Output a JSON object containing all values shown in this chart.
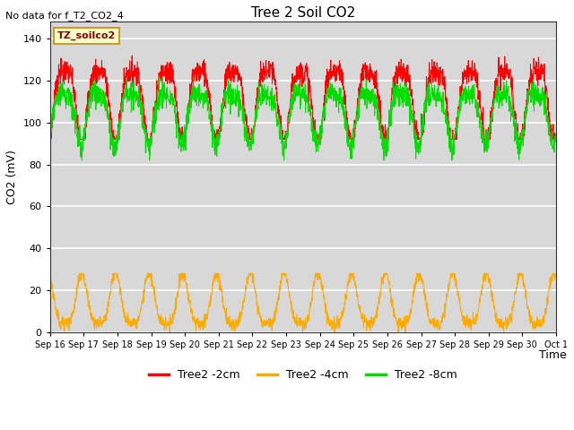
{
  "title": "Tree 2 Soil CO2",
  "no_data_text": "No data for f_T2_CO2_4",
  "tz_label": "TZ_soilco2",
  "xlabel": "Time",
  "ylabel": "CO2 (mV)",
  "ylim": [
    0,
    148
  ],
  "yticks": [
    0,
    20,
    40,
    60,
    80,
    100,
    120,
    140
  ],
  "line_colors": {
    "red": "#ff0000",
    "orange": "#ffaa00",
    "green": "#00dd00"
  },
  "legend_labels": [
    "Tree2 -2cm",
    "Tree2 -4cm",
    "Tree2 -8cm"
  ],
  "legend_colors": [
    "#ff0000",
    "#ffaa00",
    "#00dd00"
  ],
  "bg_color": "#ffffff",
  "plot_bg_color": "#d8d8d8",
  "grid_color": "#ffffff",
  "n_days": 15,
  "points_per_day": 144,
  "xtick_labels": [
    "Sep 16",
    "Sep 17",
    "Sep 18",
    "Sep 19",
    "Sep 20",
    "Sep 21",
    "Sep 22",
    "Sep 23",
    "Sep 24",
    "Sep 25",
    "Sep 26",
    "Sep 27",
    "Sep 28",
    "Sep 29",
    "Sep 30",
    "Oct 1"
  ],
  "figsize": [
    6.4,
    4.8
  ],
  "dpi": 100
}
